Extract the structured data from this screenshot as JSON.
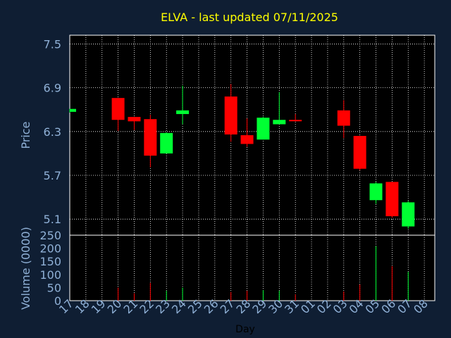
{
  "chart_data": {
    "type": "candlestick",
    "title": "ELVA - last updated 07/11/2025",
    "xlabel": "Day",
    "price_label": "Price",
    "volume_label": "Volume (0000)",
    "price_ylim": [
      4.88,
      7.62
    ],
    "price_ticks": [
      "7.5",
      "6.9",
      "6.3",
      "5.7",
      "5.1"
    ],
    "volume_ylim": [
      0,
      250
    ],
    "volume_ticks": [
      "250",
      "200",
      "150",
      "100",
      "50",
      "0"
    ],
    "grid": true,
    "colors": {
      "up": "#00ff33",
      "down": "#ff0000",
      "background": "#0f1e33",
      "panel": "#000000",
      "grid": "#ffffff",
      "title": "#ffff00",
      "text": "#8fb0d6"
    },
    "days": [
      {
        "label": "17",
        "o": 6.57,
        "h": 6.61,
        "l": 6.56,
        "c": 6.61,
        "v": 0
      },
      {
        "label": "18",
        "v": 0
      },
      {
        "label": "19",
        "v": 0
      },
      {
        "label": "20",
        "o": 6.76,
        "h": 6.76,
        "l": 6.31,
        "c": 6.46,
        "v": 50
      },
      {
        "label": "21",
        "o": 6.5,
        "h": 6.5,
        "l": 6.32,
        "c": 6.44,
        "v": 28
      },
      {
        "label": "22",
        "o": 6.47,
        "h": 6.53,
        "l": 5.81,
        "c": 5.97,
        "v": 68
      },
      {
        "label": "23",
        "o": 6.0,
        "h": 6.29,
        "l": 6.0,
        "c": 6.28,
        "v": 38
      },
      {
        "label": "24",
        "o": 6.54,
        "h": 6.93,
        "l": 6.4,
        "c": 6.59,
        "v": 50
      },
      {
        "label": "25",
        "v": 0
      },
      {
        "label": "26",
        "v": 0
      },
      {
        "label": "27",
        "o": 6.78,
        "h": 6.95,
        "l": 6.16,
        "c": 6.26,
        "v": 33
      },
      {
        "label": "28",
        "o": 6.25,
        "h": 6.48,
        "l": 6.09,
        "c": 6.13,
        "v": 38
      },
      {
        "label": "29",
        "o": 6.19,
        "h": 6.5,
        "l": 6.19,
        "c": 6.49,
        "v": 40
      },
      {
        "label": "30",
        "o": 6.4,
        "h": 6.84,
        "l": 6.4,
        "c": 6.46,
        "v": 38
      },
      {
        "label": "31",
        "o": 6.46,
        "h": 6.54,
        "l": 6.44,
        "c": 6.45,
        "v": 24
      },
      {
        "label": "01",
        "v": 0
      },
      {
        "label": "02",
        "v": 0
      },
      {
        "label": "03",
        "o": 6.59,
        "h": 6.73,
        "l": 6.21,
        "c": 6.38,
        "v": 35
      },
      {
        "label": "04",
        "o": 6.24,
        "h": 6.24,
        "l": 5.77,
        "c": 5.79,
        "v": 62
      },
      {
        "label": "05",
        "o": 5.36,
        "h": 5.61,
        "l": 5.31,
        "c": 5.59,
        "v": 208
      },
      {
        "label": "06",
        "o": 5.61,
        "h": 5.61,
        "l": 5.12,
        "c": 5.14,
        "v": 132
      },
      {
        "label": "07",
        "o": 5.0,
        "h": 5.35,
        "l": 4.97,
        "c": 5.33,
        "v": 110
      },
      {
        "label": "08",
        "v": 0
      }
    ]
  }
}
